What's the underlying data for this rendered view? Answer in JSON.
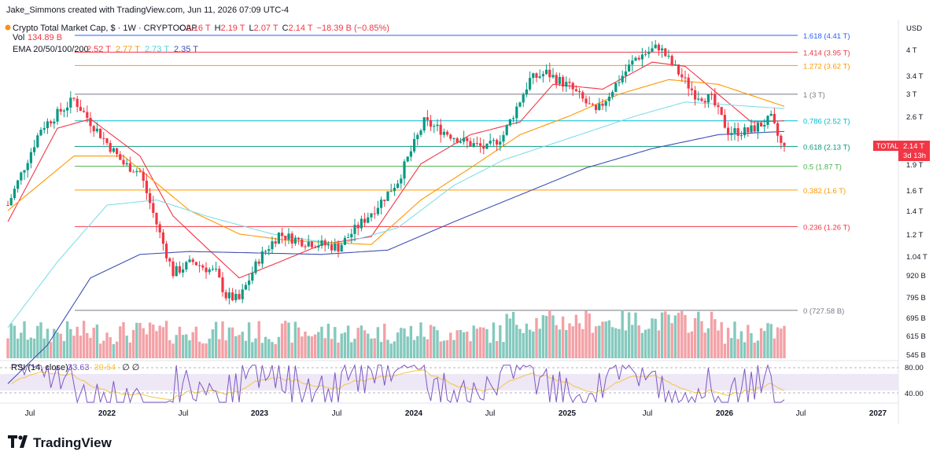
{
  "header": {
    "credit": "Jake_Simmons created with TradingView.com, Jun 11, 2026 07:09 UTC-4",
    "symbol_title": "Crypto Total Market Cap, $ · 1W · CRYPTOCAP",
    "ohlc": [
      {
        "k": "O",
        "v": "2.16 T"
      },
      {
        "k": "H",
        "v": "2.19 T"
      },
      {
        "k": "L",
        "v": "2.07 T"
      },
      {
        "k": "C",
        "v": "2.14 T"
      },
      {
        "k": "",
        "v": "−18.39 B (−0.85%)"
      }
    ],
    "vol_label": "Vol",
    "vol_value": "134.89 B",
    "ema_label": "EMA 20/50/100/200",
    "ema_values": [
      {
        "v": "2.52 T",
        "color": "#f23645"
      },
      {
        "v": "2.77 T",
        "color": "#ff9800"
      },
      {
        "v": "2.73 T",
        "color": "#4dd0e1"
      },
      {
        "v": "2.35 T",
        "color": "#3f51b5"
      }
    ],
    "rsi_label": "RSI (14, close)",
    "rsi_values": [
      {
        "v": "33.63",
        "color": "#7e57c2"
      },
      {
        "v": "39.64",
        "color": "#f5c542"
      }
    ],
    "rsi_flags": "∅ ∅"
  },
  "price_axis": {
    "unit": "USD",
    "ticks": [
      "4 T",
      "3.4 T",
      "3 T",
      "2.6 T",
      "1.9 T",
      "1.6 T",
      "1.4 T",
      "1.2 T",
      "1.04 T",
      "920 B",
      "795 B",
      "695 B",
      "615 B",
      "545 B"
    ],
    "rsi_ticks": [
      "80.00",
      "40.00"
    ],
    "last_label": "TOTAL",
    "last_value": "2.14 T",
    "last_countdown": "3d 13h"
  },
  "time_axis": [
    {
      "label": "Jul",
      "year": false
    },
    {
      "label": "2022",
      "year": true
    },
    {
      "label": "Jul",
      "year": false
    },
    {
      "label": "2023",
      "year": true
    },
    {
      "label": "Jul",
      "year": false
    },
    {
      "label": "2024",
      "year": true
    },
    {
      "label": "Jul",
      "year": false
    },
    {
      "label": "2025",
      "year": true
    },
    {
      "label": "Jul",
      "year": false
    },
    {
      "label": "2026",
      "year": true
    },
    {
      "label": "Jul",
      "year": false
    },
    {
      "label": "2027",
      "year": true
    }
  ],
  "chart_data": {
    "type": "candlestick",
    "series_name": "TOTAL",
    "y_scale": "log",
    "y_unit": "USD (trillions)",
    "fib_levels": [
      {
        "ratio": "1.618",
        "label": "1.618 (4.41 T)",
        "value": 4.41,
        "color": "#2962ff"
      },
      {
        "ratio": "1.414",
        "label": "1.414 (3.95 T)",
        "value": 3.95,
        "color": "#f23645"
      },
      {
        "ratio": "1.272",
        "label": "1.272 (3.62 T)",
        "value": 3.62,
        "color": "#ff9800"
      },
      {
        "ratio": "1",
        "label": "1 (3 T)",
        "value": 3.0,
        "color": "#787b86"
      },
      {
        "ratio": "0.786",
        "label": "0.786 (2.52 T)",
        "value": 2.52,
        "color": "#00bcd4"
      },
      {
        "ratio": "0.618",
        "label": "0.618 (2.13 T)",
        "value": 2.13,
        "color": "#089981"
      },
      {
        "ratio": "0.5",
        "label": "0.5 (1.87 T)",
        "value": 1.87,
        "color": "#4caf50"
      },
      {
        "ratio": "0.382",
        "label": "0.382 (1.6 T)",
        "value": 1.6,
        "color": "#ff9800"
      },
      {
        "ratio": "0.236",
        "label": "0.236 (1.26 T)",
        "value": 1.26,
        "color": "#f23645"
      },
      {
        "ratio": "0",
        "label": "0 (727.58 B)",
        "value": 0.7276,
        "color": "#787b86"
      }
    ],
    "price_keyframes": [
      {
        "t": 0,
        "v": 1.45
      },
      {
        "t": 10,
        "v": 2.4
      },
      {
        "t": 20,
        "v": 2.9
      },
      {
        "t": 25,
        "v": 2.5
      },
      {
        "t": 35,
        "v": 1.9
      },
      {
        "t": 40,
        "v": 1.8
      },
      {
        "t": 46,
        "v": 1.2
      },
      {
        "t": 50,
        "v": 0.93
      },
      {
        "t": 56,
        "v": 1.0
      },
      {
        "t": 63,
        "v": 0.93
      },
      {
        "t": 66,
        "v": 0.8
      },
      {
        "t": 70,
        "v": 0.78
      },
      {
        "t": 76,
        "v": 1.02
      },
      {
        "t": 82,
        "v": 1.2
      },
      {
        "t": 88,
        "v": 1.15
      },
      {
        "t": 100,
        "v": 1.1
      },
      {
        "t": 112,
        "v": 1.45
      },
      {
        "t": 118,
        "v": 1.7
      },
      {
        "t": 126,
        "v": 2.5
      },
      {
        "t": 130,
        "v": 2.4
      },
      {
        "t": 138,
        "v": 2.2
      },
      {
        "t": 145,
        "v": 2.1
      },
      {
        "t": 150,
        "v": 2.3
      },
      {
        "t": 158,
        "v": 3.3
      },
      {
        "t": 163,
        "v": 3.45
      },
      {
        "t": 170,
        "v": 3.15
      },
      {
        "t": 178,
        "v": 2.65
      },
      {
        "t": 184,
        "v": 3.2
      },
      {
        "t": 190,
        "v": 3.8
      },
      {
        "t": 197,
        "v": 4.1
      },
      {
        "t": 201,
        "v": 3.65
      },
      {
        "t": 208,
        "v": 3.0
      },
      {
        "t": 213,
        "v": 2.9
      },
      {
        "t": 218,
        "v": 2.35
      },
      {
        "t": 224,
        "v": 2.35
      },
      {
        "t": 231,
        "v": 2.55
      },
      {
        "t": 234,
        "v": 2.16
      },
      {
        "t": 235,
        "v": 2.14
      }
    ],
    "ema_keyframes": [
      {
        "name": "EMA 20",
        "color": "#f23645",
        "points": [
          [
            0,
            1.3
          ],
          [
            15,
            2.4
          ],
          [
            25,
            2.55
          ],
          [
            40,
            2.0
          ],
          [
            50,
            1.35
          ],
          [
            60,
            1.1
          ],
          [
            70,
            0.9
          ],
          [
            80,
            0.98
          ],
          [
            95,
            1.12
          ],
          [
            110,
            1.18
          ],
          [
            125,
            1.9
          ],
          [
            140,
            2.3
          ],
          [
            155,
            2.5
          ],
          [
            165,
            3.2
          ],
          [
            180,
            3.1
          ],
          [
            195,
            3.7
          ],
          [
            205,
            3.6
          ],
          [
            215,
            3.0
          ],
          [
            225,
            2.5
          ],
          [
            235,
            2.52
          ]
        ]
      },
      {
        "name": "EMA 50",
        "color": "#ff9800",
        "points": [
          [
            0,
            1.4
          ],
          [
            20,
            2.0
          ],
          [
            35,
            2.0
          ],
          [
            55,
            1.4
          ],
          [
            70,
            1.2
          ],
          [
            85,
            1.15
          ],
          [
            110,
            1.12
          ],
          [
            125,
            1.5
          ],
          [
            140,
            1.85
          ],
          [
            155,
            2.3
          ],
          [
            170,
            2.6
          ],
          [
            185,
            3.0
          ],
          [
            200,
            3.3
          ],
          [
            215,
            3.2
          ],
          [
            235,
            2.77
          ]
        ]
      },
      {
        "name": "EMA 100",
        "color": "#80deea",
        "points": [
          [
            0,
            0.65
          ],
          [
            15,
            1.0
          ],
          [
            30,
            1.45
          ],
          [
            45,
            1.5
          ],
          [
            60,
            1.35
          ],
          [
            80,
            1.2
          ],
          [
            100,
            1.12
          ],
          [
            118,
            1.25
          ],
          [
            135,
            1.65
          ],
          [
            150,
            1.95
          ],
          [
            170,
            2.25
          ],
          [
            190,
            2.6
          ],
          [
            205,
            2.85
          ],
          [
            235,
            2.73
          ]
        ]
      },
      {
        "name": "EMA 200",
        "color": "#3f51b5",
        "points": [
          [
            0,
            0.45
          ],
          [
            12,
            0.58
          ],
          [
            25,
            0.9
          ],
          [
            40,
            1.05
          ],
          [
            55,
            1.07
          ],
          [
            75,
            1.06
          ],
          [
            95,
            1.05
          ],
          [
            115,
            1.08
          ],
          [
            135,
            1.3
          ],
          [
            155,
            1.55
          ],
          [
            175,
            1.85
          ],
          [
            195,
            2.1
          ],
          [
            215,
            2.3
          ],
          [
            235,
            2.35
          ]
        ]
      }
    ],
    "volume_range_B": [
      545,
      920
    ],
    "rsi_range": [
      0,
      100
    ],
    "rsi_bands": [
      30,
      70
    ],
    "last_close": 2.14,
    "week_count": 236
  }
}
